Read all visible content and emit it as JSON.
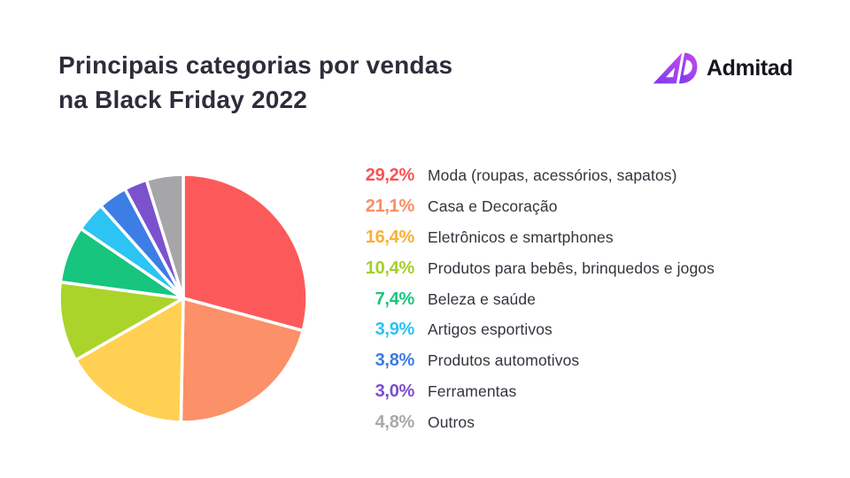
{
  "header": {
    "title_line1": "Principais categorias por vendas",
    "title_line2": "na Black Friday 2022",
    "title_color": "#2D2D3B",
    "logo": {
      "text": "Admitad",
      "text_color": "#16161E",
      "mark_gradient_start": "#7C3AED",
      "mark_gradient_end": "#C44AF0"
    }
  },
  "legend": {
    "label_color": "#34343E",
    "items": [
      {
        "percent": "29,2%",
        "label": "Moda (roupas, acessórios, sapatos)",
        "color": "#F85455"
      },
      {
        "percent": "21,1%",
        "label": "Casa e Decoração",
        "color": "#FB8E63"
      },
      {
        "percent": "16,4%",
        "label": "Eletrônicos e smartphones",
        "color": "#F9B234"
      },
      {
        "percent": "10,4%",
        "label": "Produtos para bebês, brinquedos e jogos",
        "color": "#A6D02A"
      },
      {
        "percent": "7,4%",
        "label": "Beleza e saúde",
        "color": "#19C57F"
      },
      {
        "percent": "3,9%",
        "label": "Artigos esportivos",
        "color": "#2AC3F2"
      },
      {
        "percent": "3,8%",
        "label": "Produtos automotivos",
        "color": "#3A7CE2"
      },
      {
        "percent": "3,0%",
        "label": "Ferramentas",
        "color": "#7A4ECF"
      },
      {
        "percent": "4,8%",
        "label": "Outros",
        "color": "#A9A9AC"
      }
    ]
  },
  "chart_data": {
    "type": "pie",
    "title": "Principais categorias por vendas na Black Friday 2022",
    "categories": [
      "Moda (roupas, acessórios, sapatos)",
      "Casa e Decoração",
      "Eletrônicos e smartphones",
      "Produtos para bebês, brinquedos e jogos",
      "Beleza e saúde",
      "Artigos esportivos",
      "Produtos automotivos",
      "Ferramentas",
      "Outros"
    ],
    "values": [
      29.2,
      21.1,
      16.4,
      10.4,
      7.4,
      3.9,
      3.8,
      3.0,
      4.8
    ],
    "colors": [
      "#FC5A5A",
      "#FC9068",
      "#FFD052",
      "#ABD42B",
      "#17C57F",
      "#2BC4F3",
      "#3C7EE5",
      "#7B52CE",
      "#A6A6A9"
    ],
    "start_angle_deg": 0,
    "direction": "clockwise",
    "separator_color": "#FFFFFF",
    "legend_position": "right"
  }
}
